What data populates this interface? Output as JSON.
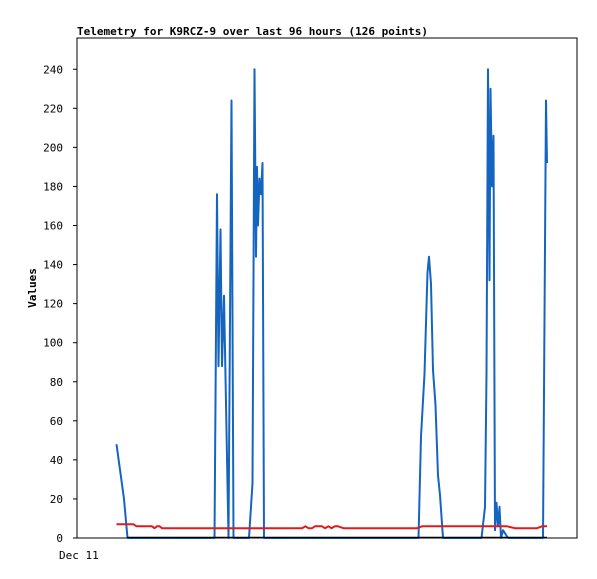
{
  "chart_data": {
    "type": "line",
    "title": "Telemetry for K9RCZ-9 over last 96 hours (126 points)",
    "xlabel": "",
    "ylabel": "Values",
    "x_tick_labels": [
      "Dec 11"
    ],
    "y_ticks": [
      0,
      20,
      40,
      60,
      80,
      100,
      120,
      140,
      160,
      180,
      200,
      220,
      240
    ],
    "xlim": [
      0,
      100
    ],
    "ylim": [
      0,
      256
    ],
    "grid": false,
    "colors": {
      "blue": "#1565c0",
      "red": "#e31a1c",
      "baseline": "#000000"
    },
    "series": [
      {
        "color": "#1565c0",
        "x": [
          7.9,
          9.4,
          10.1,
          27.5,
          28.0,
          28.3,
          28.7,
          29.0,
          29.4,
          30.3,
          30.6,
          30.9,
          31.3,
          34.4,
          35.1,
          35.5,
          35.8,
          36.0,
          36.2,
          36.5,
          36.8,
          37.1,
          37.4,
          37.6,
          68.3,
          68.8,
          69.5,
          70.1,
          70.4,
          70.8,
          71.2,
          71.7,
          72.2,
          72.6,
          73.2,
          73.6,
          74.0,
          80.9,
          81.6,
          81.9,
          82.2,
          82.5,
          82.7,
          83.0,
          83.3,
          83.6,
          83.9,
          84.2,
          84.5,
          84.8,
          85.2,
          86.2,
          87.1,
          93.2,
          93.5,
          93.8,
          94.0
        ],
        "y": [
          48,
          20,
          0,
          0,
          176,
          88,
          158,
          88,
          124,
          0,
          112,
          224,
          0,
          0,
          28,
          240,
          144,
          190,
          160,
          184,
          176,
          192,
          0,
          0,
          0,
          52,
          84,
          136,
          144,
          130,
          86,
          68,
          32,
          22,
          0,
          0,
          0,
          0,
          16,
          84,
          240,
          132,
          230,
          180,
          206,
          4,
          18,
          6,
          16,
          0,
          4,
          0,
          0,
          0,
          112,
          224,
          192
        ]
      },
      {
        "color": "#e31a1c",
        "x": [
          7.9,
          11.3,
          11.9,
          12.5,
          15.0,
          15.5,
          16.0,
          16.5,
          17.0,
          17.6,
          18.0,
          44.0,
          45.0,
          45.7,
          46.3,
          47.0,
          47.6,
          48.3,
          49.0,
          49.6,
          50.3,
          50.9,
          51.6,
          52.2,
          53.3,
          54.0,
          54.6,
          55.3,
          56.0,
          68.0,
          69.0,
          84.5,
          86.0,
          87.6,
          88.5,
          89.0,
          90.0,
          91.0,
          92.0,
          93.0,
          94.0
        ],
        "y": [
          7,
          7,
          6,
          6,
          6,
          5,
          6,
          6,
          5,
          5,
          5,
          5,
          5,
          6,
          5,
          5,
          6,
          6,
          6,
          5,
          6,
          5,
          6,
          6,
          5,
          5,
          5,
          5,
          5,
          5,
          6,
          6,
          6,
          5,
          5,
          5,
          5,
          5,
          5,
          6,
          6
        ]
      }
    ]
  }
}
